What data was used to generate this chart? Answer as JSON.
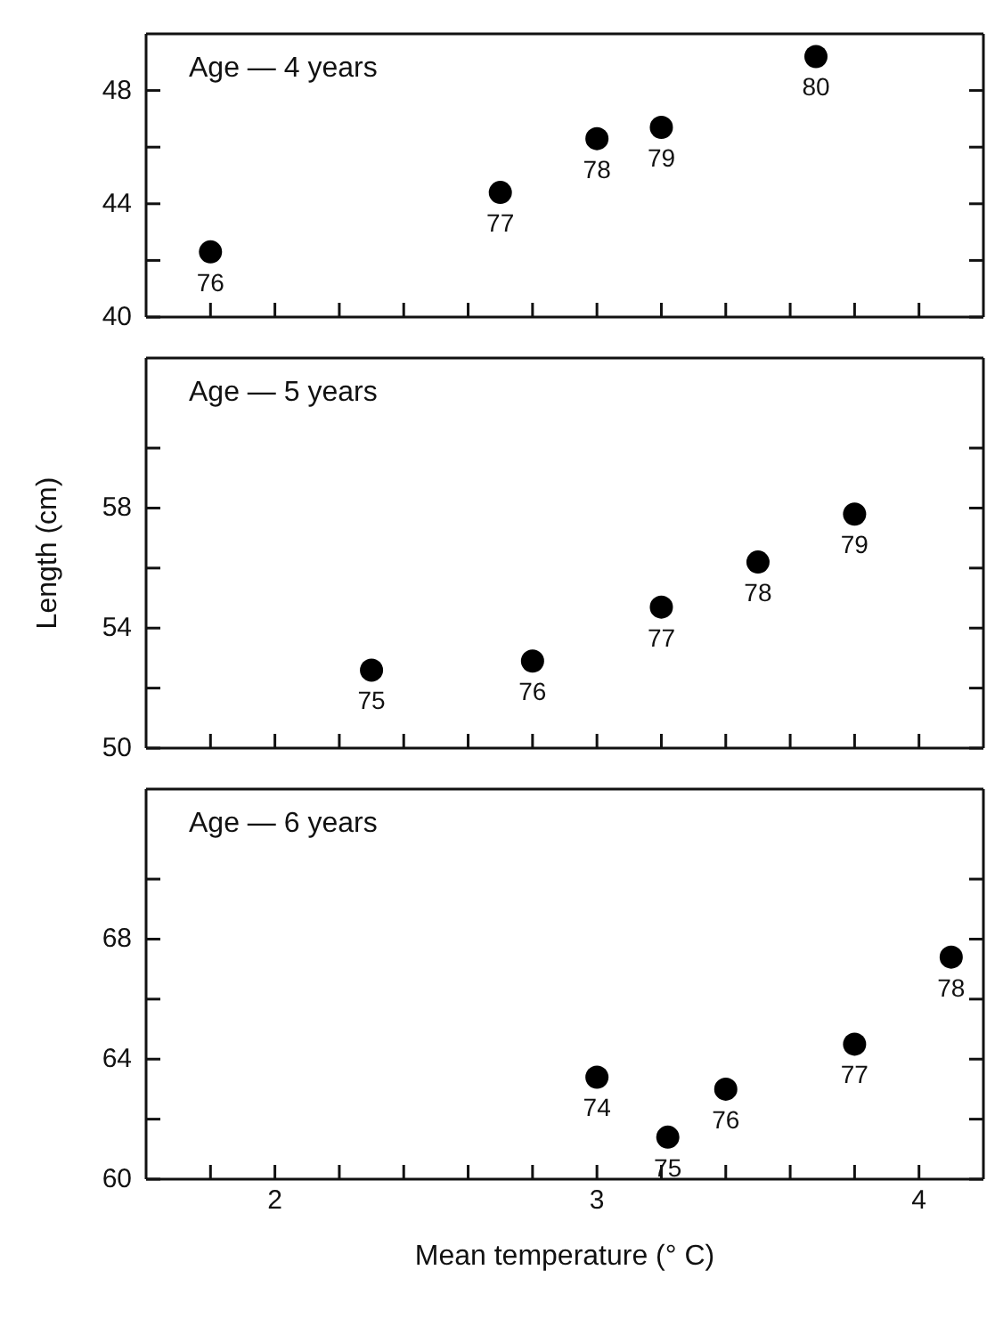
{
  "chart_data": [
    {
      "type": "scatter",
      "title": "Age — 4 years",
      "x": [
        1.8,
        2.7,
        3.0,
        3.2,
        3.68
      ],
      "values": [
        42.3,
        44.4,
        46.3,
        46.7,
        49.2
      ],
      "color": "#000000",
      "marker": "circle",
      "xlim": [
        1.6,
        4.2
      ],
      "xticks": [
        {
          "value": 1.8,
          "label": null
        },
        {
          "value": 2,
          "label": null
        },
        {
          "value": 2.2,
          "label": null
        },
        {
          "value": 2.4,
          "label": null
        },
        {
          "value": 2.6,
          "label": null
        },
        {
          "value": 2.8,
          "label": null
        },
        {
          "value": 3,
          "label": null
        },
        {
          "value": 3.2,
          "label": null
        },
        {
          "value": 3.4,
          "label": null
        },
        {
          "value": 3.6,
          "label": null
        },
        {
          "value": 3.8,
          "label": null
        },
        {
          "value": 4,
          "label": null
        }
      ],
      "ylim": [
        40,
        50
      ],
      "yticks": [
        40,
        {
          "value": 42,
          "label": null
        },
        44,
        {
          "value": 46,
          "label": null
        },
        48
      ],
      "tick_labels": "y",
      "annotations": [
        {
          "text": "76",
          "x": 1.8,
          "y": 42.3
        },
        {
          "text": "77",
          "x": 2.7,
          "y": 44.4
        },
        {
          "text": "78",
          "x": 3.0,
          "y": 46.3
        },
        {
          "text": "79",
          "x": 3.2,
          "y": 46.7
        },
        {
          "text": "80",
          "x": 3.68,
          "y": 49.2
        }
      ]
    },
    {
      "type": "scatter",
      "title": "Age — 5 years",
      "ylabel": "Length (cm)",
      "x": [
        2.3,
        2.8,
        3.2,
        3.5,
        3.8
      ],
      "values": [
        52.6,
        52.9,
        54.7,
        56.2,
        57.8
      ],
      "color": "#000000",
      "marker": "circle",
      "xlim": [
        1.6,
        4.2
      ],
      "xticks": [
        {
          "value": 1.8,
          "label": null
        },
        {
          "value": 2,
          "label": null
        },
        {
          "value": 2.2,
          "label": null
        },
        {
          "value": 2.4,
          "label": null
        },
        {
          "value": 2.6,
          "label": null
        },
        {
          "value": 2.8,
          "label": null
        },
        {
          "value": 3,
          "label": null
        },
        {
          "value": 3.2,
          "label": null
        },
        {
          "value": 3.4,
          "label": null
        },
        {
          "value": 3.6,
          "label": null
        },
        {
          "value": 3.8,
          "label": null
        },
        {
          "value": 4,
          "label": null
        }
      ],
      "ylim": [
        50,
        63
      ],
      "yticks": [
        50,
        {
          "value": 52,
          "label": null
        },
        54,
        {
          "value": 56,
          "label": null
        },
        58,
        {
          "value": 60,
          "label": null
        }
      ],
      "tick_labels": "y",
      "annotations": [
        {
          "text": "75",
          "x": 2.3,
          "y": 52.6
        },
        {
          "text": "76",
          "x": 2.8,
          "y": 52.9
        },
        {
          "text": "77",
          "x": 3.2,
          "y": 54.7
        },
        {
          "text": "78",
          "x": 3.5,
          "y": 56.2
        },
        {
          "text": "79",
          "x": 3.8,
          "y": 57.8
        }
      ]
    },
    {
      "type": "scatter",
      "title": "Age — 6 years",
      "xlabel": "Mean temperature (° C)",
      "x": [
        3.0,
        3.22,
        3.4,
        3.8,
        4.1
      ],
      "values": [
        63.4,
        61.4,
        63.0,
        64.5,
        67.4
      ],
      "color": "#000000",
      "marker": "circle",
      "xlim": [
        1.6,
        4.2
      ],
      "xticks": [
        {
          "value": 1.8,
          "label": null
        },
        {
          "value": 2,
          "label": "2"
        },
        {
          "value": 2.2,
          "label": null
        },
        {
          "value": 2.4,
          "label": null
        },
        {
          "value": 2.6,
          "label": null
        },
        {
          "value": 2.8,
          "label": null
        },
        {
          "value": 3,
          "label": "3"
        },
        {
          "value": 3.2,
          "label": null
        },
        {
          "value": 3.4,
          "label": null
        },
        {
          "value": 3.6,
          "label": null
        },
        {
          "value": 3.8,
          "label": null
        },
        {
          "value": 4,
          "label": "4"
        }
      ],
      "ylim": [
        60,
        73
      ],
      "yticks": [
        60,
        {
          "value": 62,
          "label": null
        },
        64,
        {
          "value": 66,
          "label": null
        },
        68,
        {
          "value": 70,
          "label": null
        }
      ],
      "annotations": [
        {
          "text": "74",
          "x": 3.0,
          "y": 63.4
        },
        {
          "text": "75",
          "x": 3.22,
          "y": 61.4
        },
        {
          "text": "76",
          "x": 3.4,
          "y": 63.0
        },
        {
          "text": "77",
          "x": 3.8,
          "y": 64.5
        },
        {
          "text": "78",
          "x": 4.1,
          "y": 67.4
        }
      ]
    }
  ]
}
